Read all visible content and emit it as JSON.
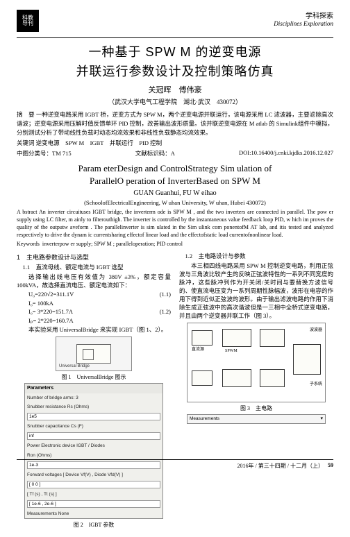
{
  "header": {
    "logo_top": "科教",
    "logo_bot": "导刊",
    "section_cn": "学科探索",
    "section_en": "Disciplines Exploration"
  },
  "title_cn_line1": "一种基于 SPW M 的逆变电源",
  "title_cn_line2": "并联运行参数设计及控制策略仿真",
  "authors_cn": "关冠晖　傅伟豪",
  "affil_cn": "（武汉大学电气工程学院　湖北·武汉　430072）",
  "abstract_cn_label": "摘　要",
  "abstract_cn": "一种逆变电路采用 IGBT 桥，逆变方式为 SPW M，两个逆变电源并联运行，该电源采用 LC 滤波器，主要滤除高次谐波；逆变电源采用压解时值反馈单环 PID 控制，改善输出波形质量。该并联逆变电源在 M atlab 的 Simulink组件中模拟，分别测试分析了带动线性负载时动态均流效果和非线性负载静态均流效果。",
  "kw_cn_label": "关键词",
  "kw_cn": "逆变电源　SPW M　IGBT　并联运行　PID 控制",
  "classification": {
    "clc_label": "中图分类号：",
    "clc": "TM 715",
    "doc_code_label": "文献标识码：",
    "doc_code": "A",
    "doi_label": "",
    "doi": "DOI:10.16400/j.cnki.kjdks.2016.12.027"
  },
  "title_en_line1": "Param eterDesign and ControlStrategy Sim ulation of",
  "title_en_line2": "ParallelO peration of InverterBased on SPW M",
  "authors_en": "GUAN Guanhui, FU W eihao",
  "affil_en": "(SchoolofElectricalEngineering, W uhan University, W uhan, Hubei 430072)",
  "abstract_en": "A bstract  An inverter circuituses IGBT bridge, the inverterm ode is SPW M , and the two inverters are connected in parallel. The pow er supply using LC filter, m ainly to filterouthigh. The inverter is controlled by the instantaneous value feedback loop PID, w hich im proves the quality of the outputw aveform . The parallelinverter is sim ulated in the Sim ulink com ponentofM AT lab, and itis tested and analyzed respectively to drive the dynam ic currentsharing effectof linear load and the effectofstatic load currentofnonlinear load.",
  "kw_en_label": "Keywords",
  "kw_en": "inverterpow er supply; SPW M ; paralleloperation; PID control",
  "col_left": {
    "sec1": "1　主电路参数设计与选型",
    "sub11": "1.1　直流母线、额定电流与 IGBT 选型",
    "p1": "选择输出线电压有效值为 380V ±3%，额定容量 100kVA，故选择直流电压、额定电流如下：",
    "eq1": {
      "eq": "U₀=220√2=311.1V",
      "num": "(1.1)"
    },
    "eq2": {
      "eq": "I₀= 100kA",
      "num": ""
    },
    "eq3": {
      "eq": "I₀= 3*220=151.7A",
      "num": "(1.2)"
    },
    "eq4": {
      "eq": "Iₚ= 2*220=160.7A",
      "num": ""
    },
    "p2": "本实验采用 UniversalBridge 来实现 IGBT（图 1、2）。",
    "fig1_cap": "图 1　UniversalBridge 图示",
    "fig1_label": "Universal Bridge",
    "fig2_title": "Parameters",
    "fig2_rows": [
      {
        "lbl": "Number of bridge arms: 3",
        "val": ""
      },
      {
        "lbl": "Snubber resistance Rs (Ohms)",
        "val": ""
      },
      {
        "lbl": "1e5",
        "val": "",
        "isval": true
      },
      {
        "lbl": "Snubber capacitance Cs (F)",
        "val": ""
      },
      {
        "lbl": "inf",
        "val": "",
        "isval": true
      },
      {
        "lbl": "Power Electronic device  IGBT / Diodes",
        "val": ""
      },
      {
        "lbl": "Ron (Ohms)",
        "val": ""
      },
      {
        "lbl": "1e-3",
        "val": "",
        "isval": true
      },
      {
        "lbl": "Forward voltages [ Device Vf(V) , Diode Vfd(V) ]",
        "val": ""
      },
      {
        "lbl": "[ 0 0 ]",
        "val": "",
        "isval": true
      },
      {
        "lbl": "[ Tf (s) , Tt (s) ]",
        "val": ""
      },
      {
        "lbl": "[ 1e-6 , 2e-6 ]",
        "val": "",
        "isval": true
      },
      {
        "lbl": "Measurements  None",
        "val": ""
      }
    ],
    "fig2_cap": "图 2　IGBT 参数"
  },
  "col_right": {
    "sub12": "1.2　主电路设计与参数",
    "p1": "本三相四线电路采用 SPW M 控制逆变电路，利用正弦波与三角波比较产生的反映正弦波特性的一系列不同宽度的脉冲，这些脉冲列作为开关闭/关时间与要替换方波信号的、使直流电压变为一系列周期性脉幅波，波形在电容的作用下得到近似正弦波的波形。由于输出滤波电路的作用下消除生成正弦波中的高次谐波但是一三相中全桥式逆变电路，并且由两个逆变器并联工作（图 3）。",
    "fig3_cap": "图 3　主电路",
    "fig3_labels": {
      "l1": "波波器",
      "l2": "SPWM",
      "l3": "子系统"
    },
    "fig3_source": "直流源",
    "meas": "Measurements"
  },
  "footer": {
    "text": "2016年 / 第三十四期 / 十二月（上）",
    "page": "59"
  }
}
